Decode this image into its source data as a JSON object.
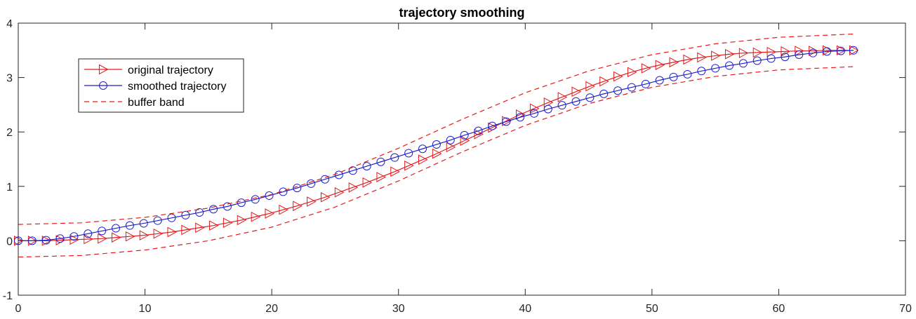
{
  "chart_data": {
    "type": "line",
    "title": "trajectory smoothing",
    "xlabel": "",
    "ylabel": "",
    "xlim": [
      0,
      70
    ],
    "ylim": [
      -1,
      4
    ],
    "xticks": [
      0,
      10,
      20,
      30,
      40,
      50,
      60,
      70
    ],
    "yticks": [
      -1,
      0,
      1,
      2,
      3,
      4
    ],
    "grid": false,
    "legend": {
      "position": "top-left"
    },
    "series": [
      {
        "name": "original trajectory",
        "color": "#e41a1c",
        "line_style": "solid",
        "marker": "triangle-right",
        "x": [
          0,
          1.1,
          2.2,
          3.3,
          4.4,
          5.5,
          6.6,
          7.7,
          8.8,
          9.9,
          11,
          12.1,
          13.2,
          14.3,
          15.4,
          16.5,
          17.6,
          18.7,
          19.8,
          20.9,
          22,
          23.1,
          24.2,
          25.3,
          26.4,
          27.5,
          28.6,
          29.7,
          30.8,
          31.9,
          33,
          34.1,
          35.2,
          36.3,
          37.4,
          38.5,
          39.6,
          40.7,
          41.8,
          42.9,
          44,
          45.1,
          46.2,
          47.3,
          48.4,
          49.5,
          50.6,
          51.7,
          52.8,
          53.9,
          55,
          56.1,
          57.2,
          58.3,
          59.4,
          60.5,
          61.6,
          62.7,
          63.8,
          64.9,
          65.9
        ],
        "y": [
          0.0,
          0.0,
          0.0,
          0.01,
          0.02,
          0.03,
          0.04,
          0.06,
          0.08,
          0.1,
          0.13,
          0.16,
          0.2,
          0.24,
          0.28,
          0.33,
          0.38,
          0.44,
          0.5,
          0.57,
          0.64,
          0.72,
          0.8,
          0.89,
          0.98,
          1.07,
          1.17,
          1.27,
          1.38,
          1.49,
          1.6,
          1.72,
          1.84,
          1.96,
          2.08,
          2.2,
          2.32,
          2.43,
          2.54,
          2.64,
          2.74,
          2.84,
          2.93,
          3.02,
          3.1,
          3.17,
          3.23,
          3.28,
          3.33,
          3.37,
          3.4,
          3.43,
          3.45,
          3.46,
          3.47,
          3.48,
          3.49,
          3.49,
          3.5,
          3.5,
          3.5
        ]
      },
      {
        "name": "smoothed trajectory",
        "color": "#1f1fcc",
        "line_style": "solid",
        "marker": "circle",
        "x": [
          0,
          1.1,
          2.2,
          3.3,
          4.4,
          5.5,
          6.6,
          7.7,
          8.8,
          9.9,
          11,
          12.1,
          13.2,
          14.3,
          15.4,
          16.5,
          17.6,
          18.7,
          19.8,
          20.9,
          22,
          23.1,
          24.2,
          25.3,
          26.4,
          27.5,
          28.6,
          29.7,
          30.8,
          31.9,
          33,
          34.1,
          35.2,
          36.3,
          37.4,
          38.5,
          39.6,
          40.7,
          41.8,
          42.9,
          44,
          45.1,
          46.2,
          47.3,
          48.4,
          49.5,
          50.6,
          51.7,
          52.8,
          53.9,
          55,
          56.1,
          57.2,
          58.3,
          59.4,
          60.5,
          61.6,
          62.7,
          63.8,
          64.9,
          65.9
        ],
        "y": [
          0.0,
          0.0,
          0.01,
          0.04,
          0.08,
          0.13,
          0.18,
          0.23,
          0.28,
          0.32,
          0.37,
          0.42,
          0.47,
          0.52,
          0.58,
          0.63,
          0.7,
          0.76,
          0.83,
          0.9,
          0.97,
          1.05,
          1.13,
          1.21,
          1.29,
          1.37,
          1.45,
          1.53,
          1.61,
          1.69,
          1.77,
          1.85,
          1.94,
          2.02,
          2.11,
          2.19,
          2.27,
          2.34,
          2.42,
          2.49,
          2.56,
          2.63,
          2.7,
          2.76,
          2.82,
          2.88,
          2.95,
          3.01,
          3.06,
          3.12,
          3.17,
          3.22,
          3.26,
          3.31,
          3.35,
          3.38,
          3.42,
          3.45,
          3.48,
          3.49,
          3.5
        ]
      },
      {
        "name": "buffer band",
        "color": "#e41a1c",
        "line_style": "dashed",
        "marker": "none",
        "x": [
          0,
          5,
          10,
          15,
          20,
          25,
          30,
          35,
          40,
          45,
          50,
          55,
          60,
          65.9
        ],
        "y_upper": [
          0.3,
          0.33,
          0.43,
          0.6,
          0.85,
          1.22,
          1.7,
          2.23,
          2.72,
          3.12,
          3.42,
          3.62,
          3.74,
          3.8
        ],
        "y_lower": [
          -0.3,
          -0.27,
          -0.17,
          0.0,
          0.25,
          0.62,
          1.1,
          1.63,
          2.12,
          2.52,
          2.82,
          3.02,
          3.14,
          3.2
        ]
      }
    ]
  }
}
